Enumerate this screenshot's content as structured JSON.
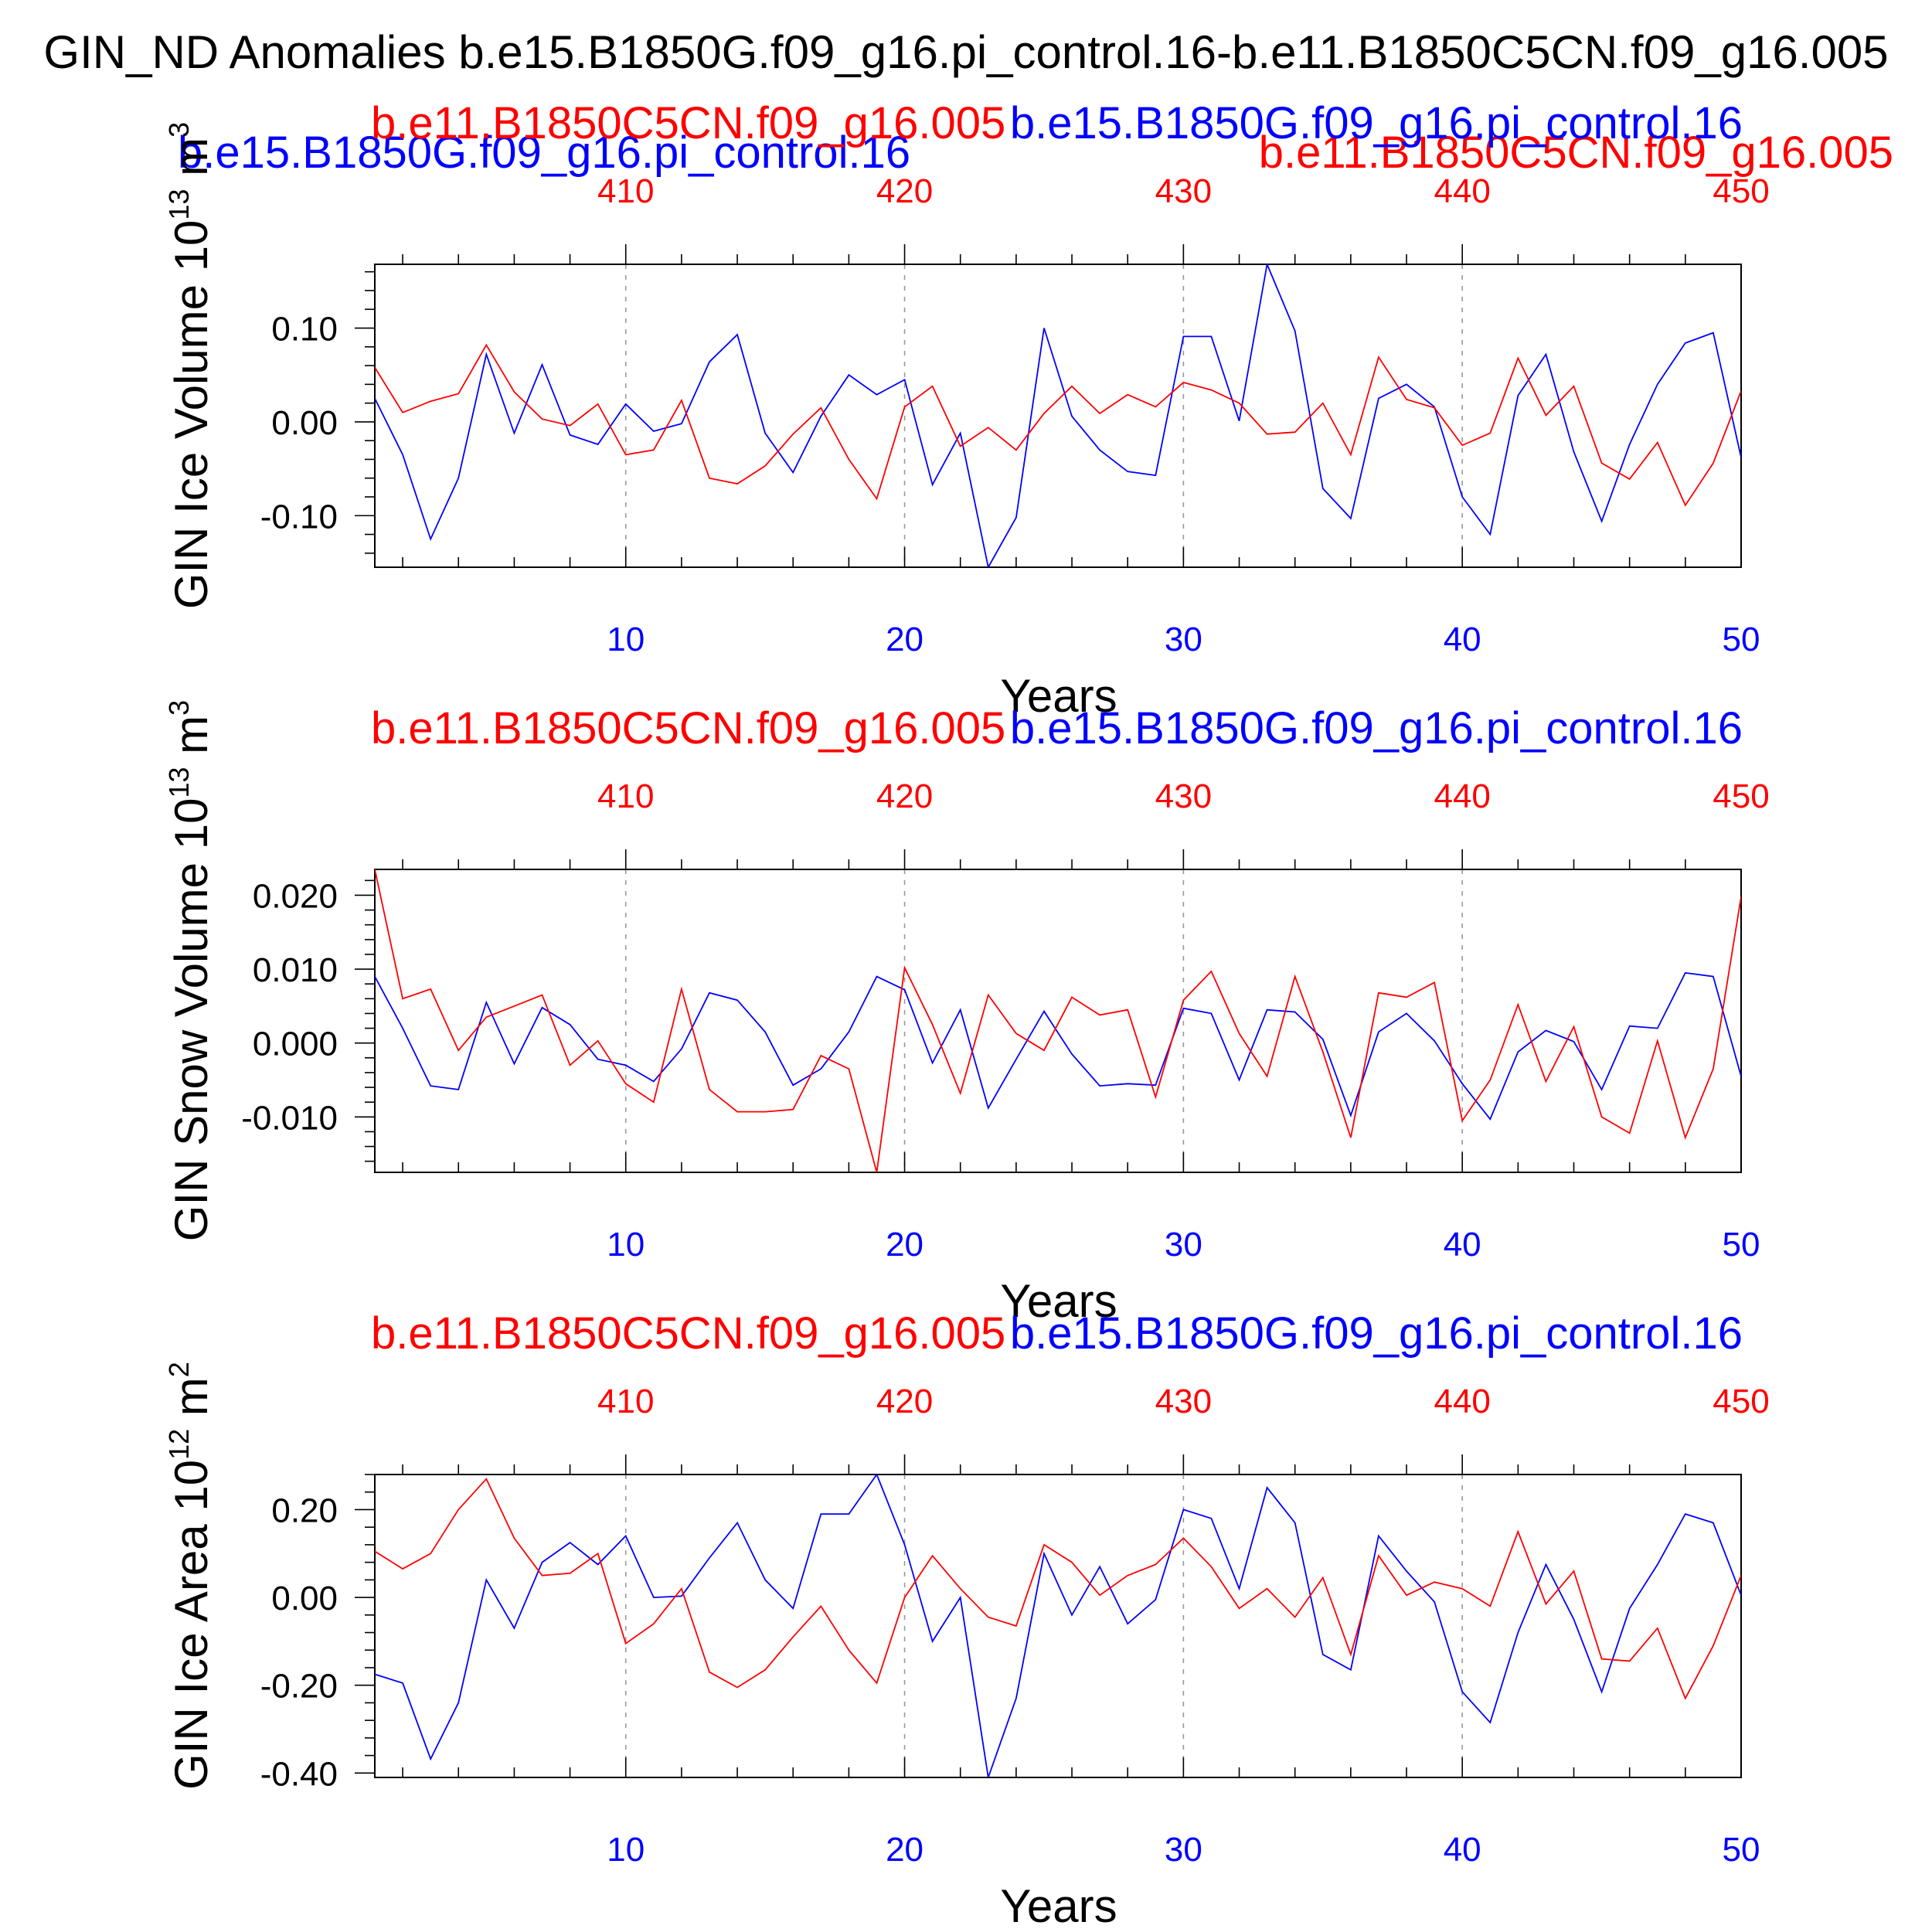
{
  "title": "GIN_ND Anomalies b.e15.B1850G.f09_g16.pi_control.16-b.e11.B1850C5CN.f09_g16.005",
  "top_labels": {
    "blue": "b.e15.B1850G.f09_g16.pi_control.16",
    "red": "b.e11.B1850C5CN.f09_g16.005"
  },
  "colors": {
    "case_a": "#0000ff",
    "case_b": "#ff0000",
    "axis": "#000000",
    "grid": "#888888"
  },
  "chart_data": [
    {
      "type": "line",
      "panel_labels": {
        "red": "b.e11.B1850C5CN.f09_g16.005",
        "blue": "b.e15.B1850G.f09_g16.pi_control.16"
      },
      "ylabel_main": "GIN Ice Volume 10",
      "ylabel_exp": "13",
      "ylabel_unit": " m",
      "ylabel_unit_exp": "3",
      "xlabel": "Years",
      "xlim": [
        1,
        50
      ],
      "ylim": [
        -0.155,
        0.168
      ],
      "x_ticks": [
        10,
        20,
        30,
        40,
        50
      ],
      "x_tick_labels": [
        "10",
        "20",
        "30",
        "40",
        "50"
      ],
      "top_tick_labels": [
        "410",
        "420",
        "430",
        "440",
        "450"
      ],
      "y_ticks": [
        -0.1,
        0.0,
        0.1
      ],
      "y_tick_labels": [
        "-0.10",
        "0.00",
        "0.10"
      ],
      "y_minor_step": 0.02,
      "series": [
        {
          "name": "b.e15.B1850G.f09_g16.pi_control.16",
          "color": "#0000ff",
          "values": [
            0.025,
            -0.035,
            -0.125,
            -0.06,
            0.072,
            -0.012,
            0.061,
            -0.014,
            -0.024,
            0.019,
            -0.01,
            -0.002,
            0.064,
            0.093,
            -0.012,
            -0.054,
            0.006,
            0.05,
            0.029,
            0.045,
            -0.067,
            -0.012,
            -0.155,
            -0.102,
            0.1,
            0.006,
            -0.03,
            -0.053,
            -0.057,
            0.091,
            0.091,
            0.001,
            0.168,
            0.097,
            -0.071,
            -0.103,
            0.025,
            0.04,
            0.016,
            -0.08,
            -0.12,
            0.028,
            0.072,
            -0.032,
            -0.106,
            -0.024,
            0.04,
            0.084,
            0.095,
            -0.038
          ]
        },
        {
          "name": "b.e11.B1850C5CN.f09_g16.005",
          "color": "#ff0000",
          "values": [
            0.058,
            0.01,
            0.022,
            0.03,
            0.082,
            0.032,
            0.003,
            -0.004,
            0.019,
            -0.035,
            -0.03,
            0.023,
            -0.06,
            -0.066,
            -0.047,
            -0.013,
            0.015,
            -0.04,
            -0.082,
            0.016,
            0.038,
            -0.026,
            -0.006,
            -0.03,
            0.009,
            0.038,
            0.009,
            0.029,
            0.016,
            0.042,
            0.034,
            0.02,
            -0.013,
            -0.011,
            0.02,
            -0.035,
            0.069,
            0.024,
            0.015,
            -0.025,
            -0.012,
            0.068,
            0.007,
            0.038,
            -0.044,
            -0.061,
            -0.022,
            -0.089,
            -0.044,
            0.033
          ]
        }
      ]
    },
    {
      "type": "line",
      "panel_labels": {
        "red": "b.e11.B1850C5CN.f09_g16.005",
        "blue": "b.e15.B1850G.f09_g16.pi_control.16"
      },
      "ylabel_main": "GIN Snow Volume 10",
      "ylabel_exp": "13",
      "ylabel_unit": " m",
      "ylabel_unit_exp": "3",
      "xlabel": "Years",
      "xlim": [
        1,
        50
      ],
      "ylim": [
        -0.0175,
        0.0235
      ],
      "x_ticks": [
        10,
        20,
        30,
        40,
        50
      ],
      "x_tick_labels": [
        "10",
        "20",
        "30",
        "40",
        "50"
      ],
      "top_tick_labels": [
        "410",
        "420",
        "430",
        "440",
        "450"
      ],
      "y_ticks": [
        -0.01,
        0.0,
        0.01,
        0.02
      ],
      "y_tick_labels": [
        "-0.010",
        "0.000",
        "0.010",
        "0.020"
      ],
      "y_minor_step": 0.002,
      "series": [
        {
          "name": "b.e15.B1850G.f09_g16.pi_control.16",
          "color": "#0000ff",
          "values": [
            0.009,
            0.002,
            -0.0058,
            -0.0063,
            0.0055,
            -0.0028,
            0.0048,
            0.0025,
            -0.0022,
            -0.003,
            -0.0052,
            -0.0008,
            0.0068,
            0.0058,
            0.0015,
            -0.0057,
            -0.0035,
            0.0015,
            0.009,
            0.0072,
            -0.0027,
            0.0045,
            -0.0088,
            -0.0022,
            0.0043,
            -0.0015,
            -0.0058,
            -0.0055,
            -0.0057,
            0.0047,
            0.004,
            -0.005,
            0.0045,
            0.0042,
            0.0005,
            -0.0098,
            0.0015,
            0.004,
            0.0003,
            -0.0055,
            -0.0103,
            -0.0012,
            0.0017,
            0.0002,
            -0.0063,
            0.0023,
            0.002,
            0.0095,
            0.009,
            -0.0045
          ]
        },
        {
          "name": "b.e11.B1850C5CN.f09_g16.005",
          "color": "#ff0000",
          "values": [
            0.0235,
            0.006,
            0.0073,
            -0.001,
            0.0035,
            0.005,
            0.0065,
            -0.003,
            0.0003,
            -0.0055,
            -0.008,
            0.0073,
            -0.0063,
            -0.0093,
            -0.0093,
            -0.009,
            -0.0017,
            -0.0035,
            -0.0175,
            0.0102,
            0.0025,
            -0.0068,
            0.0065,
            0.0013,
            -0.001,
            0.0062,
            0.0038,
            0.0045,
            -0.0073,
            0.0058,
            0.0097,
            0.0013,
            -0.0045,
            0.009,
            -0.0012,
            -0.0128,
            0.0068,
            0.0062,
            0.0082,
            -0.0105,
            -0.005,
            0.0052,
            -0.0052,
            0.0022,
            -0.01,
            -0.0122,
            0.0003,
            -0.0128,
            -0.0035,
            0.0198
          ]
        }
      ]
    },
    {
      "type": "line",
      "panel_labels": {
        "red": "b.e11.B1850C5CN.f09_g16.005",
        "blue": "b.e15.B1850G.f09_g16.pi_control.16"
      },
      "ylabel_main": "GIN Ice Area 10",
      "ylabel_exp": "12",
      "ylabel_unit": " m",
      "ylabel_unit_exp": "2",
      "xlabel": "Years",
      "xlim": [
        1,
        50
      ],
      "ylim": [
        -0.41,
        0.28
      ],
      "x_ticks": [
        10,
        20,
        30,
        40,
        50
      ],
      "x_tick_labels": [
        "10",
        "20",
        "30",
        "40",
        "50"
      ],
      "top_tick_labels": [
        "410",
        "420",
        "430",
        "440",
        "450"
      ],
      "y_ticks": [
        -0.4,
        -0.2,
        0.0,
        0.2
      ],
      "y_tick_labels": [
        "-0.40",
        "-0.20",
        "0.00",
        "0.20"
      ],
      "y_minor_step": 0.04,
      "series": [
        {
          "name": "b.e15.B1850G.f09_g16.pi_control.16",
          "color": "#0000ff",
          "values": [
            -0.175,
            -0.195,
            -0.368,
            -0.24,
            0.04,
            -0.07,
            0.08,
            0.125,
            0.075,
            0.14,
            0.0,
            0.003,
            0.09,
            0.17,
            0.04,
            -0.025,
            0.19,
            0.19,
            0.28,
            0.12,
            -0.1,
            0.0,
            -0.41,
            -0.23,
            0.1,
            -0.04,
            0.07,
            -0.06,
            -0.005,
            0.2,
            0.18,
            0.02,
            0.25,
            0.17,
            -0.13,
            -0.165,
            0.14,
            0.06,
            -0.01,
            -0.215,
            -0.285,
            -0.08,
            0.075,
            -0.05,
            -0.215,
            -0.025,
            0.075,
            0.19,
            0.17,
            0.005
          ]
        },
        {
          "name": "b.e11.B1850C5CN.f09_g16.005",
          "color": "#ff0000",
          "values": [
            0.105,
            0.065,
            0.1,
            0.2,
            0.27,
            0.135,
            0.05,
            0.055,
            0.1,
            -0.105,
            -0.06,
            0.02,
            -0.17,
            -0.205,
            -0.165,
            -0.09,
            -0.02,
            -0.12,
            -0.195,
            0.0,
            0.095,
            0.02,
            -0.045,
            -0.065,
            0.12,
            0.08,
            0.005,
            0.05,
            0.075,
            0.135,
            0.07,
            -0.025,
            0.02,
            -0.045,
            0.045,
            -0.13,
            0.095,
            0.005,
            0.035,
            0.02,
            -0.02,
            0.15,
            -0.015,
            0.06,
            -0.14,
            -0.145,
            -0.07,
            -0.23,
            -0.11,
            0.05
          ]
        }
      ]
    }
  ]
}
